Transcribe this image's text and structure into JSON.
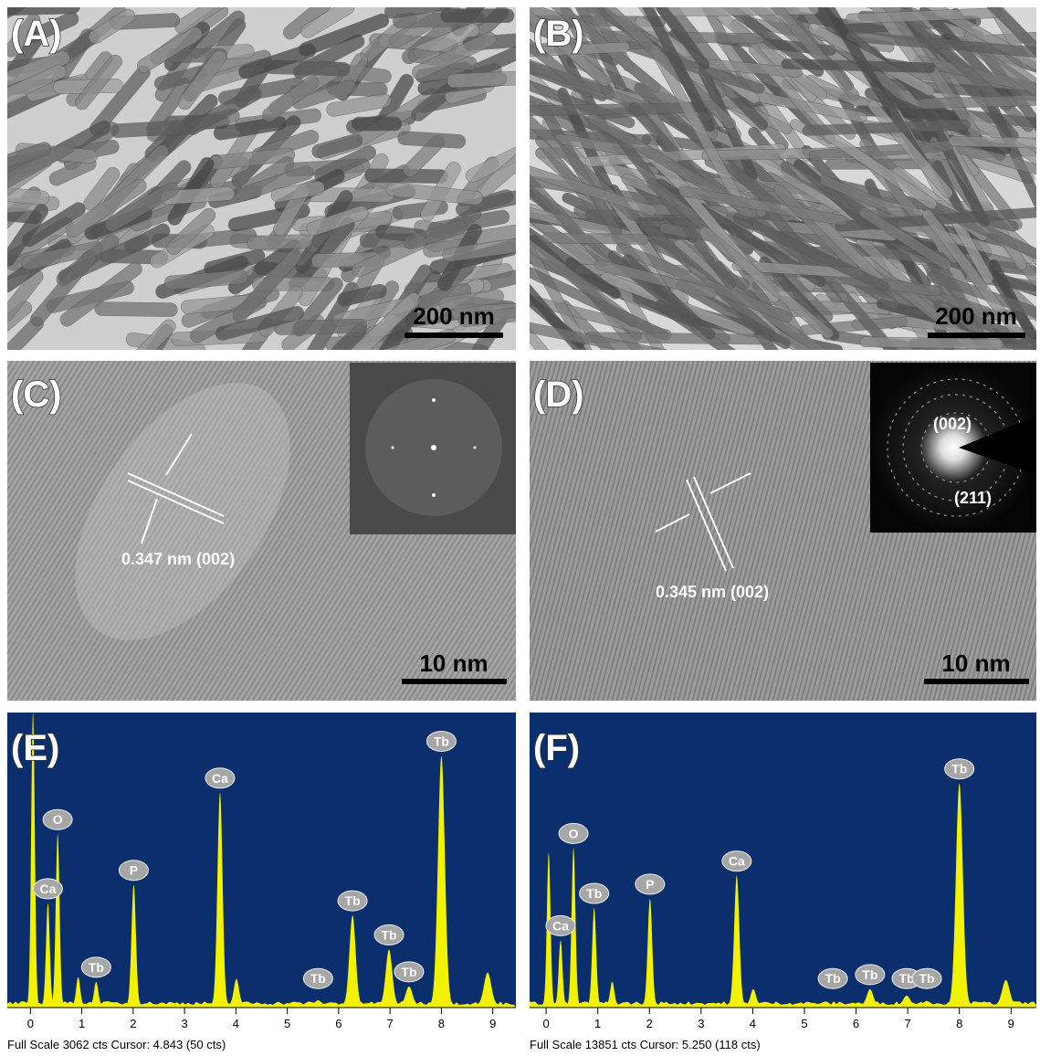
{
  "panels": [
    {
      "label": "(A)",
      "scale_bar": "200 nm"
    },
    {
      "label": "(B)",
      "scale_bar": "200 nm"
    },
    {
      "label": "(C)",
      "scale_bar": "10 nm",
      "annotation": "0.347 nm (002)"
    },
    {
      "label": "(D)",
      "scale_bar": "10 nm",
      "annotation": "0.345 nm (002)",
      "inset_labels": [
        "(002)",
        "(211)"
      ]
    }
  ],
  "chart_data": [
    {
      "type": "spectrum",
      "label": "(E)",
      "xlim": [
        -0.45,
        9.45
      ],
      "xticks": [
        0,
        1,
        2,
        3,
        4,
        5,
        6,
        7,
        8,
        9
      ],
      "ylim": [
        0,
        3062
      ],
      "x": [
        0.05,
        0.34,
        0.53,
        0.93,
        1.28,
        2.01,
        3.69,
        4.01,
        5.6,
        6.27,
        6.98,
        7.37,
        8.0,
        8.9
      ],
      "values": [
        3062,
        1063,
        1787,
        290,
        241,
        1256,
        2222,
        270,
        48,
        937,
        580,
        193,
        2608,
        338
      ],
      "color": "#f2f200",
      "background": "#0b2f6c",
      "element_labels": [
        {
          "text": "Ca",
          "x": 0.34
        },
        {
          "text": "O",
          "x": 0.53
        },
        {
          "text": "Tb",
          "x": 1.28
        },
        {
          "text": "P",
          "x": 2.01
        },
        {
          "text": "Ca",
          "x": 3.69
        },
        {
          "text": "Tb",
          "x": 5.6
        },
        {
          "text": "Tb",
          "x": 6.27
        },
        {
          "text": "Tb",
          "x": 6.98
        },
        {
          "text": "Tb",
          "x": 7.37
        },
        {
          "text": "Tb",
          "x": 8.0
        }
      ],
      "footer": "Full Scale 3062 cts Cursor: 4.843  (50 cts)"
    },
    {
      "type": "spectrum",
      "label": "(F)",
      "xlim": [
        -0.32,
        9.49
      ],
      "xticks": [
        0,
        1,
        2,
        3,
        4,
        5,
        6,
        7,
        8,
        9
      ],
      "ylim": [
        0,
        13851
      ],
      "x": [
        0.05,
        0.28,
        0.53,
        0.93,
        1.28,
        2.01,
        3.69,
        4.01,
        6.27,
        6.98,
        7.37,
        8.0,
        8.9
      ],
      "values": [
        7210,
        3058,
        7428,
        4588,
        1092,
        5025,
        6117,
        743,
        743,
        437,
        180,
        10487,
        1180
      ],
      "color": "#f2f200",
      "background": "#0b2f6c",
      "element_labels": [
        {
          "text": "Ca",
          "x": 0.28
        },
        {
          "text": "O",
          "x": 0.53
        },
        {
          "text": "Tb",
          "x": 0.93
        },
        {
          "text": "P",
          "x": 2.01
        },
        {
          "text": "Ca",
          "x": 3.69
        },
        {
          "text": "Tb",
          "x": 5.55
        },
        {
          "text": "Tb",
          "x": 6.27
        },
        {
          "text": "Tb",
          "x": 6.98
        },
        {
          "text": "Tb",
          "x": 7.37
        },
        {
          "text": "Tb",
          "x": 8.0
        }
      ],
      "footer": "Full Scale 13851 cts Cursor: 5.250  (118 cts)"
    }
  ]
}
